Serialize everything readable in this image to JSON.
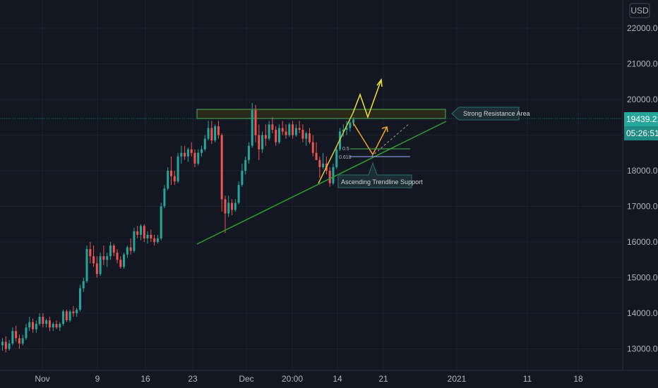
{
  "chart_data": {
    "type": "candlestick",
    "currency": "USD",
    "y_ticks": [
      13000,
      14000,
      15000,
      16000,
      17000,
      18000,
      19000,
      20000,
      21000,
      22000
    ],
    "y_tick_labels": [
      "13000.00",
      "14000.00",
      "15000.00",
      "16000.00",
      "17000.00",
      "18000.00",
      "19000.00",
      "20000.00",
      "21000.00",
      "22000.00"
    ],
    "x_ticks": [
      "Nov",
      "9",
      "16",
      "23",
      "Dec",
      "20:00",
      "14",
      "21",
      "2021",
      "11",
      "18"
    ],
    "last_price": "19439.21",
    "countdown": "05:26:51",
    "colors": {
      "up": "#26a69a",
      "down": "#ef5350",
      "background": "#131722"
    },
    "candles": [
      [
        13100,
        13300,
        12950,
        13200
      ],
      [
        13200,
        13350,
        12900,
        13000
      ],
      [
        13000,
        13250,
        12950,
        13150
      ],
      [
        13150,
        13600,
        13100,
        13500
      ],
      [
        13500,
        13650,
        13200,
        13300
      ],
      [
        13300,
        13400,
        13000,
        13150
      ],
      [
        13150,
        13400,
        13100,
        13300
      ],
      [
        13300,
        13700,
        13250,
        13600
      ],
      [
        13600,
        13900,
        13500,
        13750
      ],
      [
        13750,
        13850,
        13450,
        13550
      ],
      [
        13550,
        13800,
        13450,
        13700
      ],
      [
        13700,
        14000,
        13650,
        13900
      ],
      [
        13900,
        14000,
        13600,
        13700
      ],
      [
        13700,
        13850,
        13600,
        13800
      ],
      [
        13800,
        13900,
        13500,
        13600
      ],
      [
        13600,
        13750,
        13500,
        13700
      ],
      [
        13700,
        13800,
        13550,
        13600
      ],
      [
        13600,
        13750,
        13500,
        13700
      ],
      [
        13700,
        14100,
        13650,
        14050
      ],
      [
        14050,
        14100,
        13750,
        13800
      ],
      [
        13800,
        14100,
        13750,
        14050
      ],
      [
        14050,
        14200,
        13900,
        14000
      ],
      [
        14000,
        14150,
        13900,
        14100
      ],
      [
        14100,
        14800,
        14050,
        14700
      ],
      [
        14700,
        15000,
        14600,
        14900
      ],
      [
        14900,
        15900,
        14850,
        15800
      ],
      [
        15800,
        16000,
        15400,
        15600
      ],
      [
        15600,
        15900,
        15300,
        15400
      ],
      [
        15400,
        15600,
        15000,
        15100
      ],
      [
        15100,
        15700,
        15050,
        15600
      ],
      [
        15600,
        15900,
        15350,
        15500
      ],
      [
        15500,
        15700,
        15300,
        15600
      ],
      [
        15600,
        16000,
        15500,
        15900
      ],
      [
        15900,
        15950,
        15600,
        15700
      ],
      [
        15700,
        15800,
        15400,
        15500
      ],
      [
        15500,
        15600,
        15250,
        15300
      ],
      [
        15300,
        15700,
        15250,
        15650
      ],
      [
        15650,
        15900,
        15550,
        15850
      ],
      [
        15850,
        16100,
        15650,
        15750
      ],
      [
        15750,
        16400,
        15700,
        16300
      ],
      [
        16300,
        16450,
        16100,
        16200
      ],
      [
        16200,
        16500,
        16050,
        16450
      ],
      [
        16450,
        16500,
        16000,
        16100
      ],
      [
        16100,
        16300,
        15950,
        16200
      ],
      [
        16200,
        16350,
        16000,
        16100
      ],
      [
        16100,
        16200,
        15900,
        16000
      ],
      [
        16000,
        16200,
        15950,
        16100
      ],
      [
        16100,
        17100,
        16050,
        17000
      ],
      [
        17000,
        17600,
        16950,
        17500
      ],
      [
        17500,
        18100,
        17450,
        18000
      ],
      [
        18000,
        18400,
        17600,
        17850
      ],
      [
        17850,
        18000,
        17600,
        17700
      ],
      [
        17700,
        18500,
        17650,
        18400
      ],
      [
        18400,
        18700,
        18200,
        18500
      ],
      [
        18500,
        18700,
        18300,
        18400
      ],
      [
        18400,
        18650,
        18250,
        18600
      ],
      [
        18600,
        18800,
        18400,
        18500
      ],
      [
        18500,
        18600,
        18100,
        18200
      ],
      [
        18200,
        18600,
        18150,
        18500
      ],
      [
        18500,
        18700,
        18400,
        18600
      ],
      [
        18600,
        19000,
        18550,
        18900
      ],
      [
        18900,
        19400,
        18850,
        19200
      ],
      [
        19200,
        19400,
        18750,
        18850
      ],
      [
        18850,
        19300,
        18800,
        19250
      ],
      [
        19250,
        19400,
        18900,
        19000
      ],
      [
        19000,
        19050,
        16850,
        17200
      ],
      [
        17200,
        17300,
        16250,
        16800
      ],
      [
        16800,
        17300,
        16700,
        17100
      ],
      [
        17100,
        17200,
        16750,
        16900
      ],
      [
        16900,
        17200,
        16850,
        17100
      ],
      [
        17100,
        17700,
        17050,
        17600
      ],
      [
        17600,
        18200,
        17550,
        18000
      ],
      [
        18000,
        18400,
        17900,
        18300
      ],
      [
        18300,
        18800,
        18200,
        18700
      ],
      [
        18700,
        19900,
        18650,
        19700
      ],
      [
        19700,
        19850,
        18800,
        19000
      ],
      [
        19000,
        19300,
        18300,
        18600
      ],
      [
        18600,
        19100,
        18500,
        19000
      ],
      [
        19000,
        19300,
        18700,
        18900
      ],
      [
        18900,
        19400,
        18850,
        19300
      ],
      [
        19300,
        19500,
        19050,
        19150
      ],
      [
        19150,
        19250,
        18700,
        18800
      ],
      [
        18800,
        19300,
        18750,
        19200
      ],
      [
        19200,
        19400,
        19000,
        19100
      ],
      [
        19100,
        19300,
        18900,
        19000
      ],
      [
        19000,
        19350,
        18950,
        19300
      ],
      [
        19300,
        19400,
        18900,
        19000
      ],
      [
        19000,
        19300,
        18950,
        19200
      ],
      [
        19200,
        19400,
        19050,
        19150
      ],
      [
        19150,
        19300,
        18800,
        18900
      ],
      [
        18900,
        19100,
        18700,
        19050
      ],
      [
        19050,
        19200,
        18750,
        18800
      ],
      [
        18800,
        19000,
        18400,
        18500
      ],
      [
        18500,
        18800,
        18300,
        18300
      ],
      [
        18300,
        18400,
        17800,
        18100
      ],
      [
        18100,
        18500,
        18050,
        18200
      ],
      [
        18200,
        18400,
        17900,
        18000
      ],
      [
        18000,
        18100,
        17550,
        17650
      ],
      [
        17650,
        18200,
        17600,
        18100
      ],
      [
        18100,
        18700,
        18050,
        18600
      ],
      [
        18600,
        19200,
        18550,
        19100
      ],
      [
        19100,
        19300,
        18950,
        19150
      ],
      [
        19150,
        19400,
        19000,
        19200
      ],
      [
        19200,
        19400,
        19100,
        19350
      ],
      [
        19350,
        19500,
        19250,
        19439.21
      ]
    ],
    "annotations": {
      "resistance_label": "Strong Resistance Area",
      "support_label": "Ascending Trendline Support",
      "fib_levels": [
        "0.5",
        "0.618"
      ]
    }
  }
}
